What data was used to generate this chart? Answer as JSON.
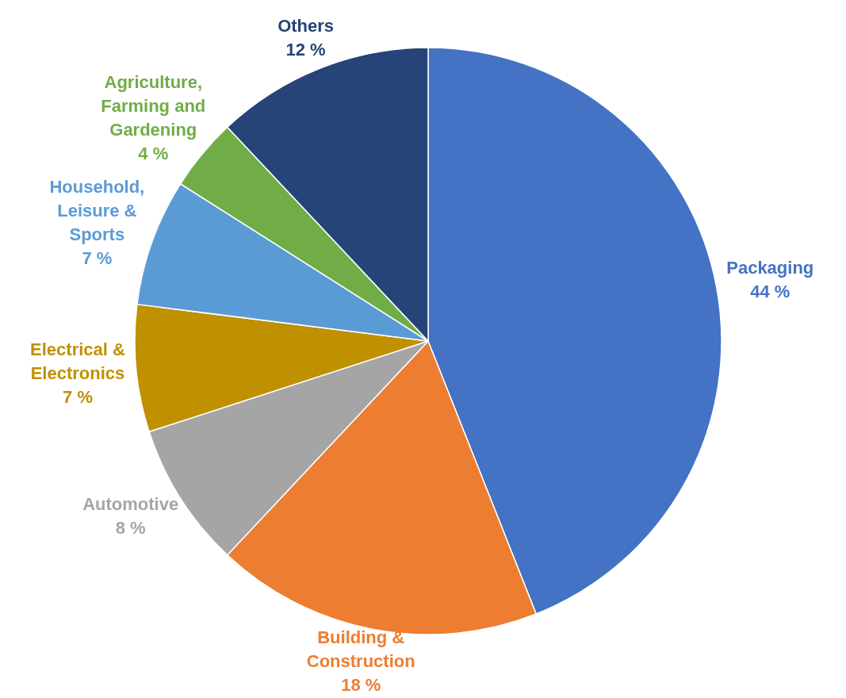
{
  "chart_data": {
    "type": "pie",
    "categories": [
      "Packaging",
      "Building & Construction",
      "Automotive",
      "Electrical & Electronics",
      "Household, Leisure & Sports",
      "Agriculture, Farming and Gardening",
      "Others"
    ],
    "values": [
      44,
      18,
      8,
      7,
      7,
      4,
      12
    ],
    "value_labels": [
      "44 %",
      "18 %",
      "8 %",
      "7 %",
      "7 %",
      "4 %",
      "12 %"
    ],
    "colors": [
      "#4472c4",
      "#ed7d31",
      "#a5a5a5",
      "#bf9000",
      "#5b9bd5",
      "#70ad47",
      "#264478"
    ]
  }
}
